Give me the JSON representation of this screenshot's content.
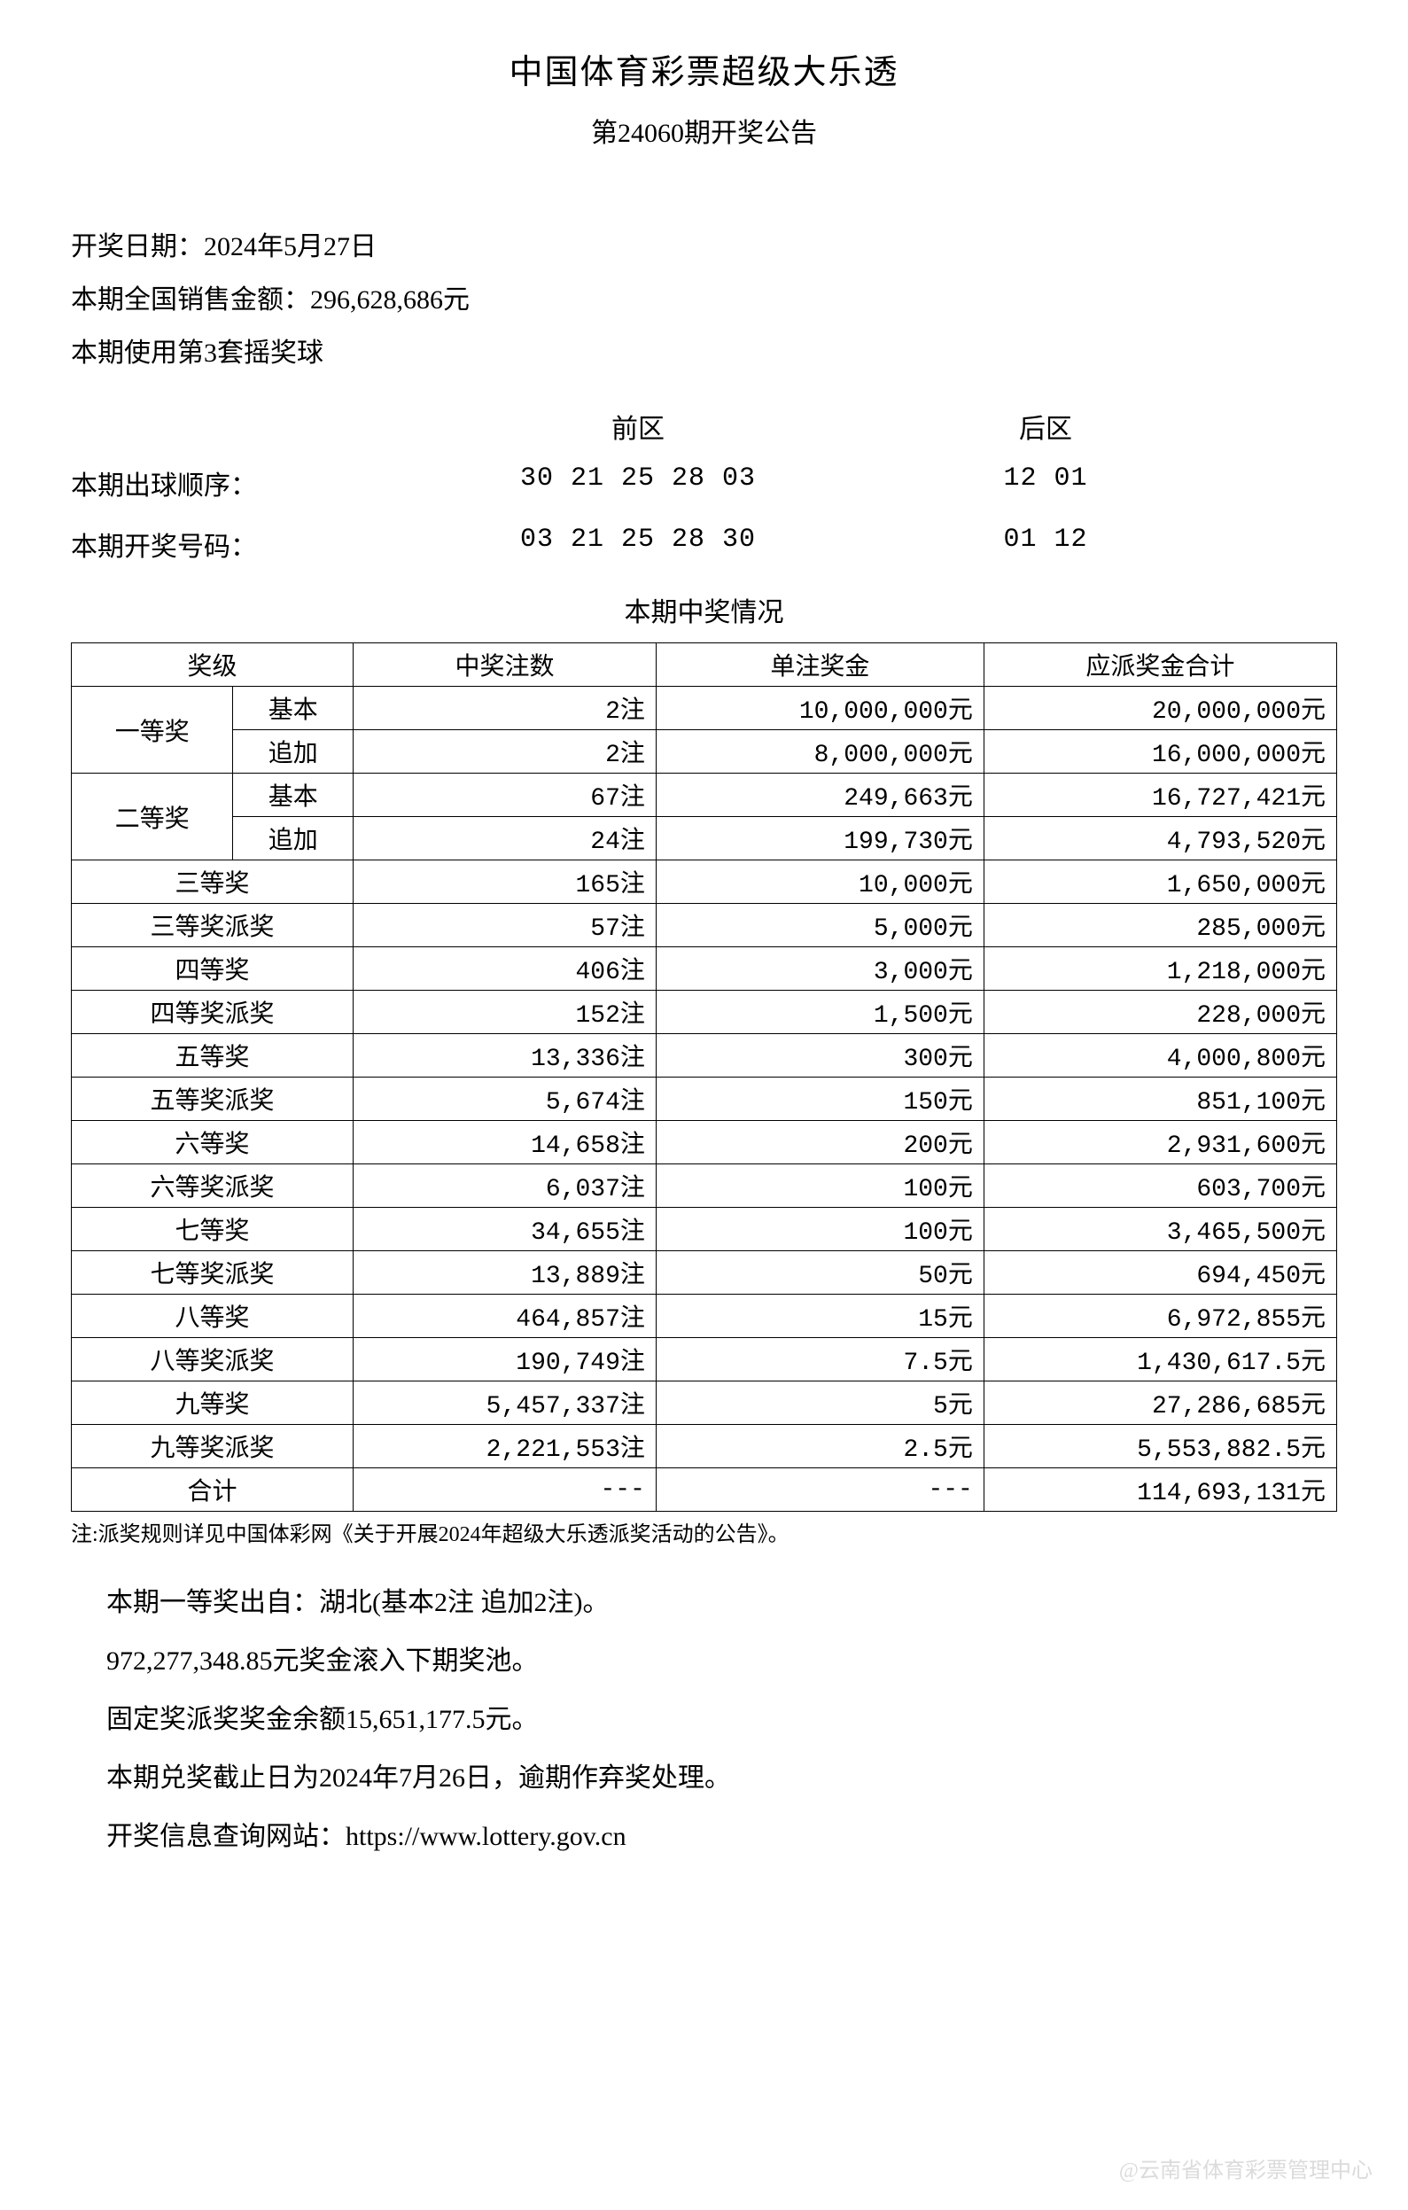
{
  "header": {
    "title": "中国体育彩票超级大乐透",
    "subtitle": "第24060期开奖公告"
  },
  "info": {
    "draw_date_label": "开奖日期：",
    "draw_date": "2024年5月27日",
    "sales_label": "本期全国销售金额：",
    "sales_amount": "296,628,686元",
    "ball_set_label": "本期使用第3套摇奖球"
  },
  "numbers": {
    "front_label": "前区",
    "back_label": "后区",
    "draw_order_label": "本期出球顺序：",
    "draw_order_front": "30 21 25 28 03",
    "draw_order_back": "12 01",
    "winning_label": "本期开奖号码：",
    "winning_front": "03 21 25 28 30",
    "winning_back": "01 12"
  },
  "table": {
    "title": "本期中奖情况",
    "headers": {
      "level": "奖级",
      "count": "中奖注数",
      "per_prize": "单注奖金",
      "total": "应派奖金合计"
    },
    "first_prize": {
      "label": "一等奖",
      "basic_label": "基本",
      "basic_count": "2注",
      "basic_per": "10,000,000元",
      "basic_total": "20,000,000元",
      "extra_label": "追加",
      "extra_count": "2注",
      "extra_per": "8,000,000元",
      "extra_total": "16,000,000元"
    },
    "second_prize": {
      "label": "二等奖",
      "basic_label": "基本",
      "basic_count": "67注",
      "basic_per": "249,663元",
      "basic_total": "16,727,421元",
      "extra_label": "追加",
      "extra_count": "24注",
      "extra_per": "199,730元",
      "extra_total": "4,793,520元"
    },
    "rows": [
      {
        "label": "三等奖",
        "count": "165注",
        "per": "10,000元",
        "total": "1,650,000元"
      },
      {
        "label": "三等奖派奖",
        "count": "57注",
        "per": "5,000元",
        "total": "285,000元"
      },
      {
        "label": "四等奖",
        "count": "406注",
        "per": "3,000元",
        "total": "1,218,000元"
      },
      {
        "label": "四等奖派奖",
        "count": "152注",
        "per": "1,500元",
        "total": "228,000元"
      },
      {
        "label": "五等奖",
        "count": "13,336注",
        "per": "300元",
        "total": "4,000,800元"
      },
      {
        "label": "五等奖派奖",
        "count": "5,674注",
        "per": "150元",
        "total": "851,100元"
      },
      {
        "label": "六等奖",
        "count": "14,658注",
        "per": "200元",
        "total": "2,931,600元"
      },
      {
        "label": "六等奖派奖",
        "count": "6,037注",
        "per": "100元",
        "total": "603,700元"
      },
      {
        "label": "七等奖",
        "count": "34,655注",
        "per": "100元",
        "total": "3,465,500元"
      },
      {
        "label": "七等奖派奖",
        "count": "13,889注",
        "per": "50元",
        "total": "694,450元"
      },
      {
        "label": "八等奖",
        "count": "464,857注",
        "per": "15元",
        "total": "6,972,855元"
      },
      {
        "label": "八等奖派奖",
        "count": "190,749注",
        "per": "7.5元",
        "total": "1,430,617.5元"
      },
      {
        "label": "九等奖",
        "count": "5,457,337注",
        "per": "5元",
        "total": "27,286,685元"
      },
      {
        "label": "九等奖派奖",
        "count": "2,221,553注",
        "per": "2.5元",
        "total": "5,553,882.5元"
      }
    ],
    "total_row": {
      "label": "合计",
      "count": "---",
      "per": "---",
      "total": "114,693,131元"
    }
  },
  "note": "注:派奖规则详见中国体彩网《关于开展2024年超级大乐透派奖活动的公告》。",
  "footer": {
    "line1": "本期一等奖出自：湖北(基本2注 追加2注)。",
    "line2": "972,277,348.85元奖金滚入下期奖池。",
    "line3": "固定奖派奖奖金余额15,651,177.5元。",
    "line4": "本期兑奖截止日为2024年7月26日，逾期作弃奖处理。",
    "line5": "开奖信息查询网站：https://www.lottery.gov.cn"
  },
  "watermark": "@云南省体育彩票管理中心"
}
